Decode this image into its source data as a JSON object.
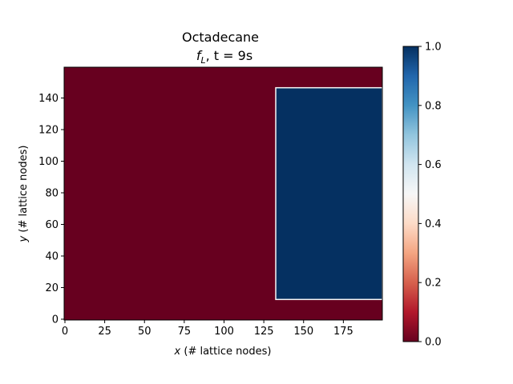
{
  "chart_data": {
    "type": "heatmap",
    "title": "Octadecane",
    "subtitle_prefix": "f",
    "subtitle_subscript": "L",
    "subtitle_suffix": ", t = 9s",
    "xlabel_var": "x",
    "xlabel": " (# lattice nodes)",
    "ylabel_var": "y",
    "ylabel": " (# lattice nodes)",
    "xlim": [
      0,
      199
    ],
    "ylim": [
      0,
      159
    ],
    "x_ticks": [
      0,
      25,
      50,
      75,
      100,
      125,
      150,
      175
    ],
    "y_ticks": [
      0,
      20,
      40,
      60,
      80,
      100,
      120,
      140
    ],
    "field": {
      "background_value": 0.0,
      "liquid_region": {
        "x_range": [
          133,
          199
        ],
        "y_range": [
          13,
          146
        ],
        "value": 1.0
      }
    },
    "colorbar": {
      "colormap": "RdBu",
      "range": [
        0.0,
        1.0
      ],
      "ticks": [
        "0.0",
        "0.2",
        "0.4",
        "0.6",
        "0.8",
        "1.0"
      ]
    },
    "colors": {
      "value_0": "#67001f",
      "value_1": "#053061",
      "interface": "#f7f7f7"
    }
  }
}
